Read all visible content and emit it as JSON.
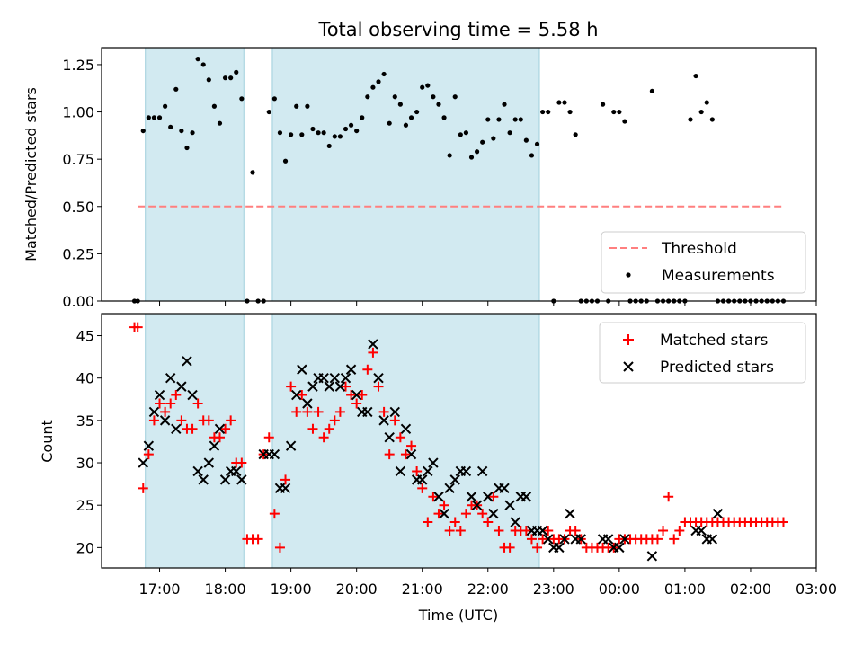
{
  "chart_data": [
    {
      "type": "scatter",
      "title": "Total observing time = 5.58 h",
      "ylabel": "Matched/Predicted stars",
      "xlabel": "",
      "ylim": [
        0,
        1.34
      ],
      "yticks": [
        "0.00",
        "0.25",
        "0.50",
        "0.75",
        "1.00",
        "1.25"
      ],
      "legend_position": "lower-right",
      "colors": {
        "threshold": "#ff7f7f",
        "measurements": "#000000",
        "shading": "#add8e6"
      },
      "threshold": {
        "name": "Threshold",
        "y": 0.5,
        "x_start": "16:40",
        "x_end": "02:30"
      },
      "series": [
        {
          "name": "Measurements",
          "x": [
            "16:37",
            "16:40",
            "16:45",
            "16:50",
            "16:55",
            "17:00",
            "17:05",
            "17:10",
            "17:15",
            "17:20",
            "17:25",
            "17:30",
            "17:35",
            "17:40",
            "17:45",
            "17:50",
            "17:55",
            "18:00",
            "18:05",
            "18:10",
            "18:15",
            "18:20",
            "18:25",
            "18:30",
            "18:35",
            "18:40",
            "18:45",
            "18:50",
            "18:55",
            "19:00",
            "19:05",
            "19:10",
            "19:15",
            "19:20",
            "19:25",
            "19:30",
            "19:35",
            "19:40",
            "19:45",
            "19:50",
            "19:55",
            "20:00",
            "20:05",
            "20:10",
            "20:15",
            "20:20",
            "20:25",
            "20:30",
            "20:35",
            "20:40",
            "20:45",
            "20:50",
            "20:55",
            "21:00",
            "21:05",
            "21:10",
            "21:15",
            "21:20",
            "21:25",
            "21:30",
            "21:35",
            "21:40",
            "21:45",
            "21:50",
            "21:55",
            "22:00",
            "22:05",
            "22:10",
            "22:15",
            "22:20",
            "22:25",
            "22:30",
            "22:35",
            "22:40",
            "22:45",
            "22:50",
            "22:55",
            "23:00",
            "23:05",
            "23:10",
            "23:15",
            "23:20",
            "23:25",
            "23:30",
            "23:35",
            "23:40",
            "23:45",
            "23:50",
            "23:55",
            "00:00",
            "00:05",
            "00:10",
            "00:15",
            "00:20",
            "00:25",
            "00:30",
            "00:35",
            "00:40",
            "00:45",
            "00:50",
            "00:55",
            "01:00",
            "01:05",
            "01:10",
            "01:15",
            "01:20",
            "01:25",
            "01:30",
            "01:35",
            "01:40",
            "01:45",
            "01:50",
            "01:55",
            "02:00",
            "02:05",
            "02:10",
            "02:15",
            "02:20",
            "02:25",
            "02:30"
          ],
          "y": [
            0,
            0,
            0.9,
            0.97,
            0.97,
            0.97,
            1.03,
            0.92,
            1.12,
            0.9,
            0.81,
            0.89,
            1.28,
            1.25,
            1.17,
            1.03,
            0.94,
            1.18,
            1.18,
            1.21,
            1.07,
            0,
            0.68,
            0,
            0,
            1.0,
            1.07,
            0.89,
            0.74,
            0.88,
            1.03,
            0.88,
            1.03,
            0.91,
            0.89,
            0.89,
            0.82,
            0.87,
            0.87,
            0.91,
            0.93,
            0.9,
            0.97,
            1.08,
            1.13,
            1.16,
            1.2,
            0.94,
            1.08,
            1.04,
            0.93,
            0.97,
            1.0,
            1.13,
            1.14,
            1.08,
            1.04,
            0.97,
            0.77,
            1.08,
            0.88,
            0.89,
            0.76,
            0.79,
            0.84,
            0.96,
            0.86,
            0.96,
            1.04,
            0.89,
            0.96,
            0.96,
            0.85,
            0.77,
            0.83,
            1.0,
            1.0,
            0,
            1.05,
            1.05,
            1.0,
            0.88,
            0,
            0,
            0,
            0,
            1.04,
            0,
            1.0,
            1.0,
            0.95,
            0,
            0,
            0,
            0,
            1.11,
            0,
            0,
            0,
            0,
            0,
            0,
            0.96,
            1.19,
            1.0,
            1.05,
            0.96,
            0,
            0,
            0,
            0,
            0,
            0,
            0,
            0,
            0,
            0,
            0,
            0,
            0
          ]
        }
      ]
    },
    {
      "type": "scatter",
      "title": "",
      "ylabel": "Count",
      "xlabel": "Time (UTC)",
      "ylim": [
        17.6,
        47.6
      ],
      "yticks": [
        "20",
        "25",
        "30",
        "35",
        "40",
        "45"
      ],
      "legend_position": "top-right",
      "colors": {
        "matched": "#ff0000",
        "predicted": "#000000"
      },
      "series": [
        {
          "name": "Matched stars",
          "x": [
            "16:37",
            "16:40",
            "16:45",
            "16:50",
            "16:55",
            "17:00",
            "17:05",
            "17:10",
            "17:15",
            "17:20",
            "17:25",
            "17:30",
            "17:35",
            "17:40",
            "17:45",
            "17:50",
            "17:55",
            "18:00",
            "18:05",
            "18:10",
            "18:15",
            "18:20",
            "18:25",
            "18:30",
            "18:35",
            "18:40",
            "18:45",
            "18:50",
            "18:55",
            "19:00",
            "19:05",
            "19:10",
            "19:15",
            "19:20",
            "19:25",
            "19:30",
            "19:35",
            "19:40",
            "19:45",
            "19:50",
            "19:55",
            "20:00",
            "20:05",
            "20:10",
            "20:15",
            "20:20",
            "20:25",
            "20:30",
            "20:35",
            "20:40",
            "20:45",
            "20:50",
            "20:55",
            "21:00",
            "21:05",
            "21:10",
            "21:15",
            "21:20",
            "21:25",
            "21:30",
            "21:35",
            "21:40",
            "21:45",
            "21:50",
            "21:55",
            "22:00",
            "22:05",
            "22:10",
            "22:15",
            "22:20",
            "22:25",
            "22:30",
            "22:35",
            "22:40",
            "22:45",
            "22:50",
            "22:55",
            "23:00",
            "23:05",
            "23:10",
            "23:15",
            "23:20",
            "23:25",
            "23:30",
            "23:35",
            "23:40",
            "23:45",
            "23:50",
            "23:55",
            "00:00",
            "00:05",
            "00:10",
            "00:15",
            "00:20",
            "00:25",
            "00:30",
            "00:35",
            "00:40",
            "00:45",
            "00:50",
            "00:55",
            "01:00",
            "01:05",
            "01:10",
            "01:15",
            "01:20",
            "01:25",
            "01:30",
            "01:35",
            "01:40",
            "01:45",
            "01:50",
            "01:55",
            "02:00",
            "02:05",
            "02:10",
            "02:15",
            "02:20",
            "02:25",
            "02:30"
          ],
          "y": [
            46,
            46,
            27,
            31,
            35,
            37,
            36,
            37,
            38,
            35,
            34,
            34,
            37,
            35,
            35,
            33,
            33,
            34,
            35,
            30,
            30,
            21,
            21,
            21,
            31,
            33,
            24,
            20,
            28,
            39,
            36,
            38,
            36,
            34,
            36,
            33,
            34,
            35,
            36,
            39,
            38,
            37,
            38,
            41,
            43,
            39,
            36,
            31,
            35,
            33,
            31,
            32,
            29,
            27,
            23,
            26,
            24,
            25,
            22,
            23,
            22,
            24,
            25,
            25,
            24,
            23,
            26,
            22,
            20,
            20,
            22,
            22,
            22,
            21,
            20,
            21,
            22,
            21,
            21,
            21,
            22,
            22,
            21,
            20,
            20,
            20,
            20,
            20,
            20,
            21,
            21,
            21,
            21,
            21,
            21,
            21,
            21,
            22,
            26,
            21,
            22,
            23,
            23,
            23,
            23,
            23,
            23,
            23,
            23,
            23,
            23,
            23,
            23,
            23,
            23,
            23,
            23,
            23,
            23,
            23
          ]
        },
        {
          "name": "Predicted stars",
          "x": [
            "16:45",
            "16:50",
            "16:55",
            "17:00",
            "17:05",
            "17:10",
            "17:15",
            "17:20",
            "17:25",
            "17:30",
            "17:35",
            "17:40",
            "17:45",
            "17:50",
            "17:55",
            "18:00",
            "18:05",
            "18:10",
            "18:15",
            "18:35",
            "18:40",
            "18:45",
            "18:50",
            "18:55",
            "19:00",
            "19:05",
            "19:10",
            "19:15",
            "19:20",
            "19:25",
            "19:30",
            "19:35",
            "19:40",
            "19:45",
            "19:50",
            "19:55",
            "20:00",
            "20:05",
            "20:10",
            "20:15",
            "20:20",
            "20:25",
            "20:30",
            "20:35",
            "20:40",
            "20:45",
            "20:50",
            "20:55",
            "21:00",
            "21:05",
            "21:10",
            "21:15",
            "21:20",
            "21:25",
            "21:30",
            "21:35",
            "21:40",
            "21:45",
            "21:50",
            "21:55",
            "22:00",
            "22:05",
            "22:10",
            "22:15",
            "22:20",
            "22:25",
            "22:30",
            "22:35",
            "22:40",
            "22:45",
            "22:50",
            "22:55",
            "23:00",
            "23:05",
            "23:10",
            "23:15",
            "23:20",
            "23:25",
            "23:45",
            "23:50",
            "23:55",
            "00:00",
            "00:05",
            "00:30",
            "01:10",
            "01:15",
            "01:20",
            "01:25",
            "01:30"
          ],
          "y": [
            30,
            32,
            36,
            38,
            35,
            40,
            34,
            39,
            42,
            38,
            29,
            28,
            30,
            32,
            34,
            28,
            29,
            29,
            28,
            31,
            31,
            31,
            27,
            27,
            32,
            38,
            41,
            37,
            39,
            40,
            40,
            39,
            40,
            39,
            40,
            41,
            38,
            36,
            36,
            44,
            40,
            35,
            33,
            36,
            29,
            34,
            31,
            28,
            28,
            29,
            30,
            26,
            24,
            27,
            28,
            29,
            29,
            26,
            25,
            29,
            26,
            24,
            27,
            27,
            25,
            23,
            26,
            26,
            22,
            22,
            22,
            21,
            20,
            20,
            21,
            24,
            21,
            21,
            21,
            21,
            20,
            20,
            21,
            19,
            22,
            22,
            21,
            21,
            24
          ]
        }
      ],
      "xticks": [
        "17:00",
        "18:00",
        "19:00",
        "20:00",
        "21:00",
        "22:00",
        "23:00",
        "00:00",
        "01:00",
        "02:00",
        "03:00"
      ],
      "xlim": [
        "16:07",
        "03:00"
      ]
    }
  ],
  "legend": {
    "top": [
      "Threshold",
      "Measurements"
    ],
    "bottom": [
      "Matched stars",
      "Predicted stars"
    ]
  },
  "shaded_intervals": [
    [
      "16:47",
      "18:17"
    ],
    [
      "18:43",
      "22:47"
    ]
  ]
}
